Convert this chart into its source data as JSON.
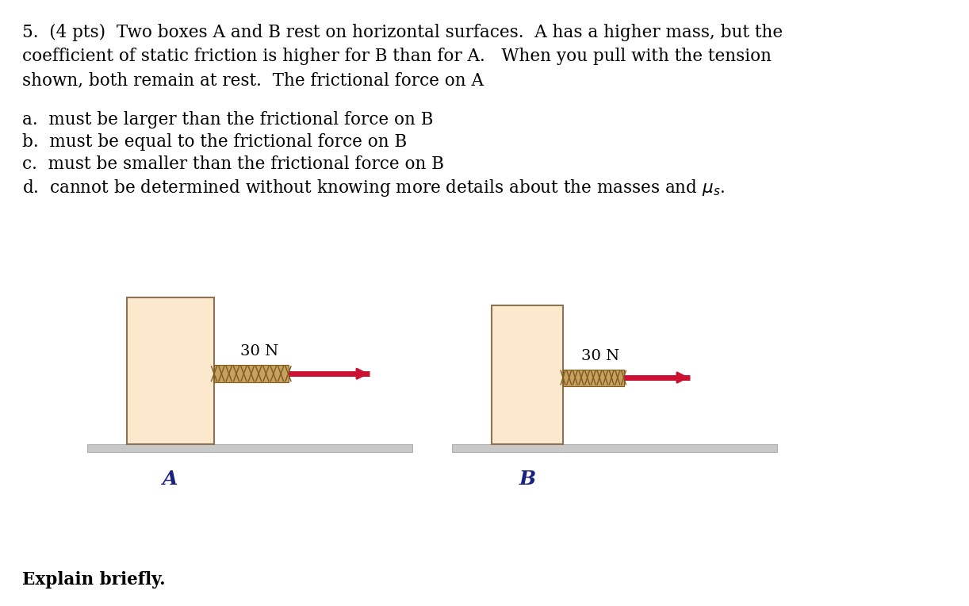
{
  "background_color": "#ffffff",
  "title_line1": "5.  (4 pts)  Two boxes A and B rest on horizontal surfaces.  A has a higher mass, but the",
  "title_line2": "coefficient of static friction is higher for B than for A.   When you pull with the tension",
  "title_line3": "shown, both remain at rest.  The frictional force on A",
  "option_a": "a.  must be larger than the frictional force on B",
  "option_b": "b.  must be equal to the frictional force on B",
  "option_c": "c.  must be smaller than the frictional force on B",
  "option_d": "d.  cannot be determined without knowing more details about the masses and μs.",
  "footer_text": "Explain briefly.",
  "box_fill_color": "#fce8cc",
  "box_edge_color": "#8B7355",
  "ground_color": "#c8c8c8",
  "ground_edge_color": "#999999",
  "rope_base_color": "#c8a060",
  "rope_dark_color": "#7a5c1e",
  "arrow_color": "#cc1133",
  "arrow_head_color": "#cc1133",
  "force_label": "30 N",
  "label_A": "A",
  "label_B": "B",
  "font_size_title": 15.5,
  "font_size_options": 15.5,
  "font_size_footer": 15.5,
  "font_size_force": 14,
  "font_size_box_label": 18
}
